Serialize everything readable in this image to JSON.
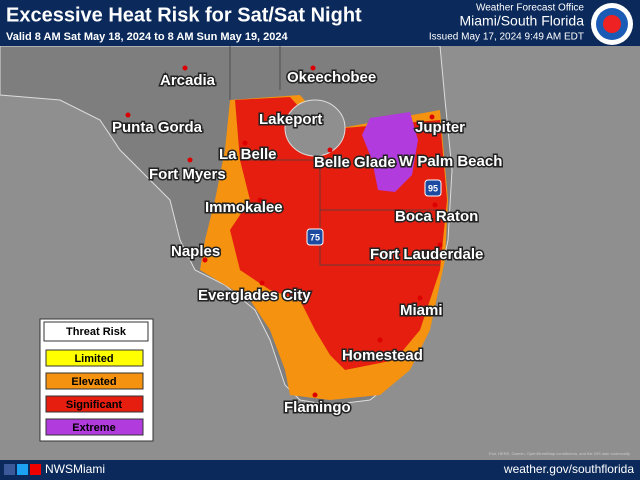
{
  "header": {
    "title": "Excessive Heat Risk for Sat/Sat Night",
    "valid": "Valid 8 AM Sat May 18, 2024 to 8 AM Sun May 19, 2024",
    "office": "Weather Forecast Office",
    "office_name": "Miami/South Florida",
    "issued": "Issued May 17, 2024 9:49 AM EDT"
  },
  "cities": [
    "Arcadia",
    "Okeechobee",
    "Punta Gorda",
    "Lakeport",
    "La Belle",
    "Jupiter",
    "Belle Glade",
    "W Palm Beach",
    "Fort Myers",
    "Immokalee",
    "Boca Raton",
    "Naples",
    "Fort Lauderdale",
    "Everglades City",
    "Miami",
    "Homestead",
    "Flamingo"
  ],
  "highways": [
    "75",
    "95"
  ],
  "legend": {
    "title": "Threat Risk",
    "items": [
      "Limited",
      "Elevated",
      "Significant",
      "Extreme"
    ]
  },
  "footer": {
    "social": "NWSMiami",
    "url": "weather.gov/southflorida",
    "attribution": "Esri, HERE, Garmin, OpenStreetMap contributors, and the GIS user community"
  }
}
